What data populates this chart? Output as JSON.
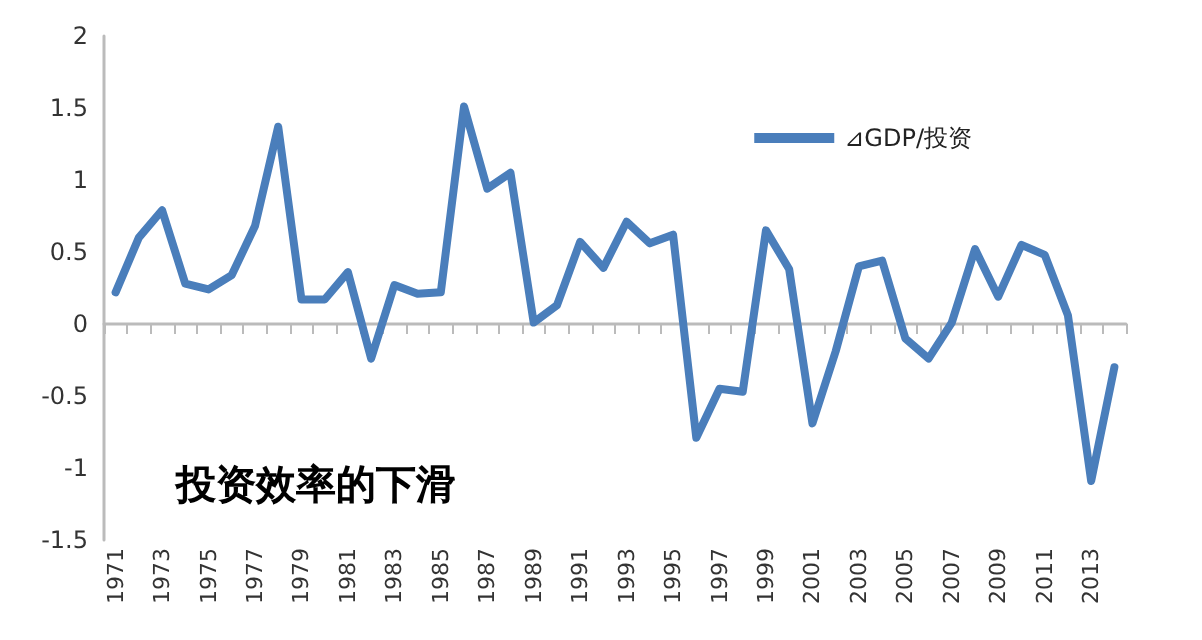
{
  "chart_data": {
    "type": "line",
    "categories": [
      "1971",
      null,
      "1973",
      null,
      "1975",
      null,
      "1977",
      null,
      "1979",
      null,
      "1981",
      null,
      "1983",
      null,
      "1985",
      null,
      "1987",
      null,
      "1989",
      null,
      "1991",
      null,
      "1993",
      null,
      "1995",
      null,
      "1997",
      null,
      "1999",
      null,
      "2001",
      null,
      "2003",
      null,
      "2005",
      null,
      "2007",
      null,
      "2009",
      null,
      "2011",
      null,
      "2013",
      null
    ],
    "series": [
      {
        "name": "⊿GDP/投资",
        "color": "#4a7ebb",
        "values": [
          0.22,
          0.6,
          0.79,
          0.28,
          0.24,
          0.34,
          0.68,
          1.37,
          0.17,
          0.17,
          0.36,
          -0.24,
          0.27,
          0.21,
          0.22,
          1.51,
          0.94,
          1.05,
          0.01,
          0.13,
          0.57,
          0.39,
          0.71,
          0.56,
          0.62,
          -0.79,
          -0.45,
          -0.47,
          0.65,
          0.38,
          -0.69,
          -0.19,
          0.4,
          0.44,
          -0.1,
          -0.24,
          0.01,
          0.52,
          0.19,
          0.55,
          0.48,
          0.06,
          -1.09,
          -0.3
        ]
      }
    ],
    "ylim": [
      -1.5,
      2
    ],
    "yticks": [
      -1.5,
      -1,
      -0.5,
      0,
      0.5,
      1,
      1.5,
      2
    ],
    "legend": "top right",
    "marker": "none",
    "line_style": "solid",
    "annotations": [
      "投资效率的下滑"
    ]
  }
}
